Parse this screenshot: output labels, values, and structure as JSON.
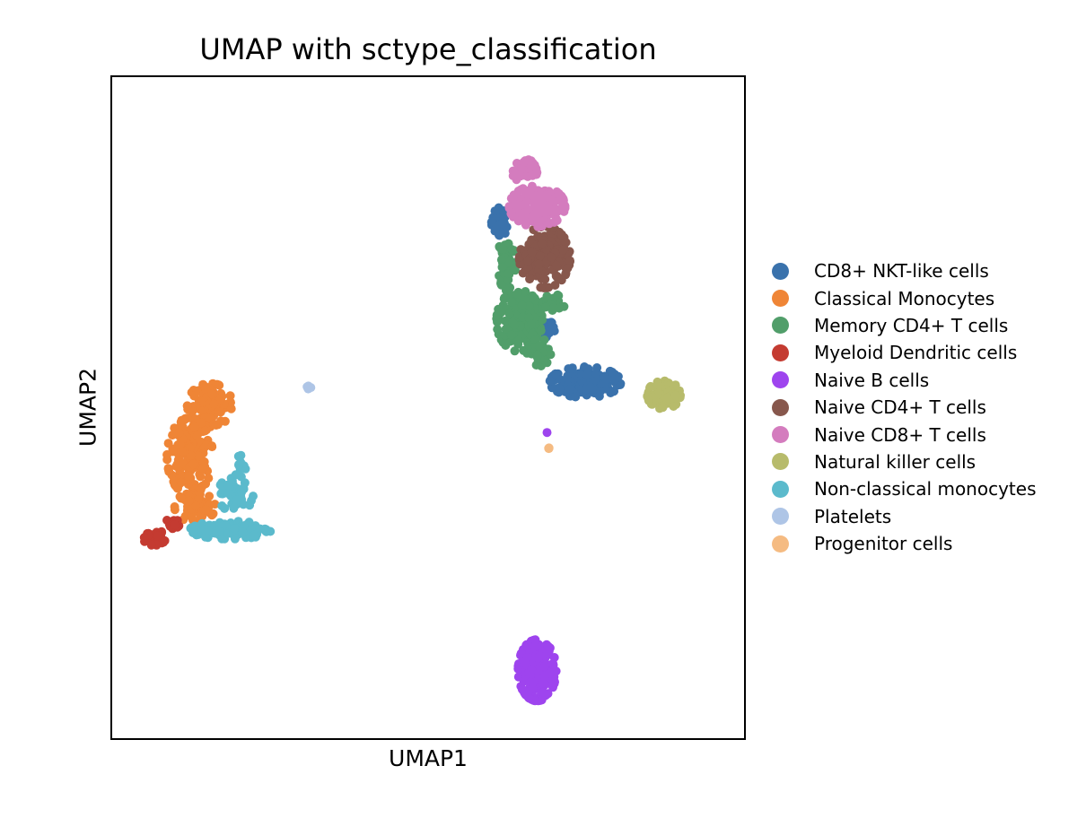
{
  "chart_data": {
    "type": "scatter",
    "title": "UMAP with sctype_classification",
    "xlabel": "UMAP1",
    "ylabel": "UMAP2",
    "xlim": [
      -7.5,
      17.5
    ],
    "ylim": [
      -8.5,
      17.5
    ],
    "grid": false,
    "ticks": false,
    "legend_position": "right",
    "series": [
      {
        "name": "CD8+ NKT-like cells",
        "color": "#3a72ac",
        "clusters": [
          {
            "cx": 7.85,
            "cy": 11.8,
            "rx": 0.35,
            "ry": 0.55,
            "n": 40
          },
          {
            "cx": 9.5,
            "cy": 7.6,
            "rx": 0.5,
            "ry": 0.35,
            "n": 40
          },
          {
            "cx": 11.2,
            "cy": 5.5,
            "rx": 1.4,
            "ry": 0.6,
            "n": 170
          }
        ]
      },
      {
        "name": "Classical Monocytes",
        "color": "#ef8536",
        "clusters": [
          {
            "cx": -3.6,
            "cy": 4.6,
            "rx": 0.9,
            "ry": 0.85,
            "n": 110
          },
          {
            "cx": -4.4,
            "cy": 2.6,
            "rx": 0.9,
            "ry": 1.5,
            "n": 180
          },
          {
            "cx": -4.2,
            "cy": 0.6,
            "rx": 0.8,
            "ry": 0.6,
            "n": 60
          }
        ]
      },
      {
        "name": "Memory CD4+ T cells",
        "color": "#519e6a",
        "clusters": [
          {
            "cx": 8.1,
            "cy": 10.2,
            "rx": 0.35,
            "ry": 1.1,
            "n": 70
          },
          {
            "cx": 8.6,
            "cy": 7.9,
            "rx": 0.9,
            "ry": 1.2,
            "n": 170
          },
          {
            "cx": 9.4,
            "cy": 6.6,
            "rx": 0.5,
            "ry": 0.6,
            "n": 40
          },
          {
            "cx": 9.9,
            "cy": 8.6,
            "rx": 0.5,
            "ry": 0.35,
            "n": 30
          }
        ]
      },
      {
        "name": "Myeloid Dendritic cells",
        "color": "#c43b31",
        "clusters": [
          {
            "cx": -5.8,
            "cy": -0.6,
            "rx": 0.45,
            "ry": 0.3,
            "n": 25
          },
          {
            "cx": -5.05,
            "cy": -0.05,
            "rx": 0.3,
            "ry": 0.25,
            "n": 12
          }
        ]
      },
      {
        "name": "Naive B cells",
        "color": "#9e44ee",
        "clusters": [
          {
            "cx": 9.3,
            "cy": -5.8,
            "rx": 0.75,
            "ry": 1.2,
            "n": 200
          },
          {
            "cx": 9.7,
            "cy": 3.5,
            "rx": 0.05,
            "ry": 0.05,
            "n": 1
          }
        ]
      },
      {
        "name": "Naive CD4+ T cells",
        "color": "#87574c",
        "clusters": [
          {
            "cx": 9.6,
            "cy": 10.4,
            "rx": 1.0,
            "ry": 1.2,
            "n": 200
          }
        ]
      },
      {
        "name": "Naive CD8+ T cells",
        "color": "#d47cbe",
        "clusters": [
          {
            "cx": 9.3,
            "cy": 12.4,
            "rx": 1.1,
            "ry": 0.8,
            "n": 160
          },
          {
            "cx": 8.8,
            "cy": 13.8,
            "rx": 0.5,
            "ry": 0.45,
            "n": 40
          }
        ]
      },
      {
        "name": "Natural killer  cells",
        "color": "#b7bb6b",
        "clusters": [
          {
            "cx": 14.3,
            "cy": 5.0,
            "rx": 0.65,
            "ry": 0.55,
            "n": 90
          }
        ]
      },
      {
        "name": "Non-classical monocytes",
        "color": "#5bbacc",
        "clusters": [
          {
            "cx": -2.8,
            "cy": -0.3,
            "rx": 1.6,
            "ry": 0.35,
            "n": 130
          },
          {
            "cx": -2.6,
            "cy": 1.1,
            "rx": 0.7,
            "ry": 0.7,
            "n": 45
          },
          {
            "cx": -2.4,
            "cy": 2.2,
            "rx": 0.25,
            "ry": 0.5,
            "n": 15
          }
        ]
      },
      {
        "name": "Platelets",
        "color": "#aec5e6",
        "clusters": [
          {
            "cx": 0.3,
            "cy": 5.3,
            "rx": 0.1,
            "ry": 0.08,
            "n": 5
          }
        ]
      },
      {
        "name": "Progenitor cells",
        "color": "#f5bb82",
        "clusters": [
          {
            "cx": 9.75,
            "cy": 2.9,
            "rx": 0.05,
            "ry": 0.06,
            "n": 3
          }
        ]
      }
    ]
  }
}
